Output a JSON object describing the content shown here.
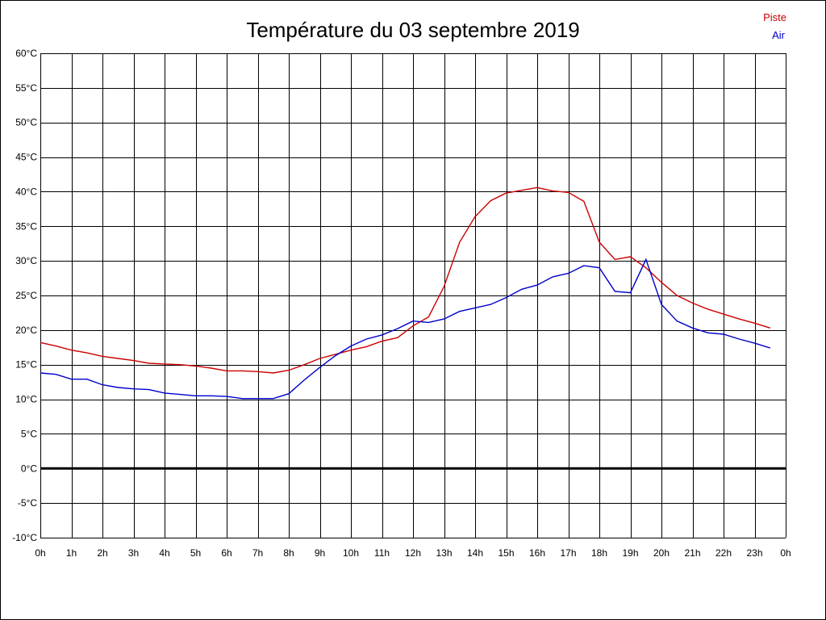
{
  "chart_data": {
    "type": "line",
    "title": "Température du 03 septembre 2019",
    "xlabel": "",
    "ylabel": "",
    "x_ticks": [
      "0h",
      "1h",
      "2h",
      "3h",
      "4h",
      "5h",
      "6h",
      "7h",
      "8h",
      "9h",
      "10h",
      "11h",
      "12h",
      "13h",
      "14h",
      "15h",
      "16h",
      "17h",
      "18h",
      "19h",
      "20h",
      "21h",
      "22h",
      "23h",
      "0h"
    ],
    "y_ticks": [
      "-10°C",
      "-5°C",
      "0°C",
      "5°C",
      "10°C",
      "15°C",
      "20°C",
      "25°C",
      "30°C",
      "35°C",
      "40°C",
      "45°C",
      "50°C",
      "55°C",
      "60°C"
    ],
    "xlim": [
      0,
      24
    ],
    "ylim": [
      -10,
      60
    ],
    "grid": true,
    "zero_line": true,
    "legend_position": "top-right",
    "series": [
      {
        "name": "Piste",
        "color": "#cc0000",
        "x": [
          0,
          0.5,
          1,
          1.5,
          2,
          2.5,
          3,
          3.5,
          4,
          4.5,
          5,
          5.5,
          6,
          6.5,
          7,
          7.5,
          8,
          8.5,
          9,
          9.5,
          10,
          10.5,
          11,
          11.5,
          12,
          12.5,
          13,
          13.5,
          14,
          14.5,
          15,
          15.5,
          16,
          16.5,
          17,
          17.5,
          18,
          18.5,
          19,
          19.5,
          20,
          20.5,
          21,
          21.5,
          22,
          22.5,
          23,
          23.5
        ],
        "values": [
          18.2,
          17.7,
          17.1,
          16.7,
          16.2,
          15.9,
          15.6,
          15.2,
          15.1,
          15.0,
          14.8,
          14.5,
          14.1,
          14.1,
          14.0,
          13.8,
          14.2,
          15.0,
          15.9,
          16.5,
          17.1,
          17.6,
          18.4,
          18.9,
          20.6,
          21.9,
          26.3,
          32.7,
          36.4,
          38.7,
          39.8,
          40.2,
          40.6,
          40.1,
          39.9,
          38.6,
          32.7,
          30.2,
          30.6,
          29.0,
          26.9,
          25.0,
          23.9,
          23.0,
          22.3,
          21.6,
          21.0,
          20.3
        ]
      },
      {
        "name": "Air",
        "color": "#0000cc",
        "x": [
          0,
          0.5,
          1,
          1.5,
          2,
          2.5,
          3,
          3.5,
          4,
          4.5,
          5,
          5.5,
          6,
          6.5,
          7,
          7.5,
          8,
          8.5,
          9,
          9.5,
          10,
          10.5,
          11,
          11.5,
          12,
          12.5,
          13,
          13.5,
          14,
          14.5,
          15,
          15.5,
          16,
          16.5,
          17,
          17.5,
          18,
          18.5,
          19,
          19.5,
          20,
          20.5,
          21,
          21.5,
          22,
          22.5,
          23,
          23.5
        ],
        "values": [
          13.8,
          13.6,
          12.9,
          12.9,
          12.1,
          11.7,
          11.5,
          11.4,
          10.9,
          10.7,
          10.5,
          10.5,
          10.4,
          10.1,
          10.1,
          10.1,
          10.8,
          12.8,
          14.6,
          16.3,
          17.7,
          18.7,
          19.3,
          20.2,
          21.3,
          21.1,
          21.6,
          22.7,
          23.2,
          23.7,
          24.7,
          25.9,
          26.5,
          27.7,
          28.2,
          29.3,
          29.0,
          25.6,
          25.4,
          30.2,
          23.7,
          21.3,
          20.3,
          19.6,
          19.4,
          18.7,
          18.1,
          17.4
        ]
      }
    ]
  }
}
